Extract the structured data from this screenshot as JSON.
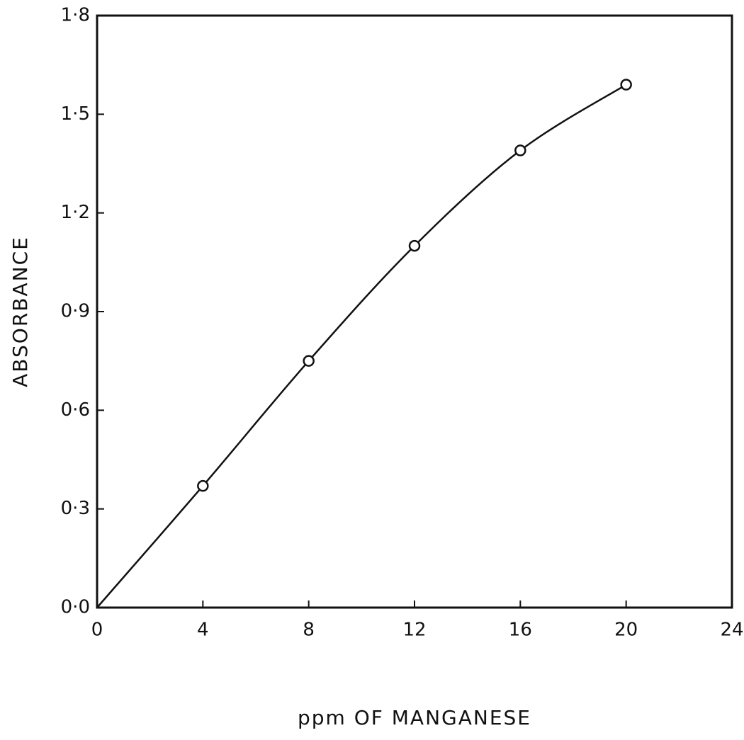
{
  "chart_data": {
    "type": "line",
    "x_label": "ppm OF MANGANESE",
    "y_label": "ABSORBANCE",
    "x": [
      0,
      4,
      8,
      12,
      16,
      20
    ],
    "series": [
      {
        "color": "#111111",
        "values": [
          0,
          0.37,
          0.75,
          1.1,
          1.39,
          1.59
        ]
      }
    ],
    "xlim": [
      0,
      24
    ],
    "xticks": [
      0,
      4,
      8,
      12,
      16,
      20,
      24
    ],
    "ylim": [
      0,
      1.8
    ],
    "yticks": [
      {
        "value": 0,
        "label": "0·0"
      },
      {
        "value": 0.3,
        "label": "0·3"
      },
      {
        "value": 0.6,
        "label": "0·6"
      },
      {
        "value": 0.9,
        "label": "0·9"
      },
      {
        "value": 1.2,
        "label": "1·2"
      },
      {
        "value": 1.5,
        "label": "1·5"
      },
      {
        "value": 1.8,
        "label": "1·8"
      }
    ],
    "grid": false
  }
}
